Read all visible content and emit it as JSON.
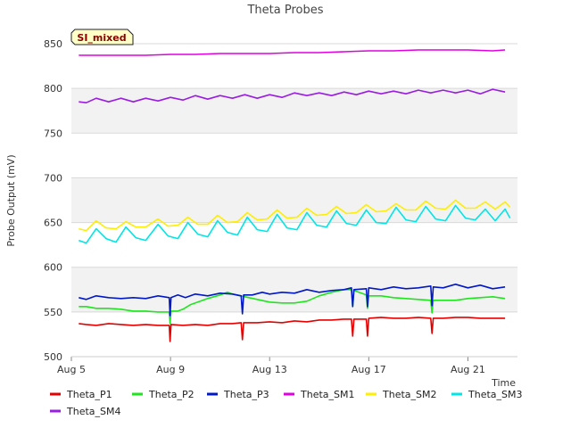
{
  "chart_data": {
    "type": "line",
    "title": "Theta Probes",
    "xlabel": "Time",
    "ylabel": "Probe Output (mV)",
    "badge": "SI_mixed",
    "x_axis": {
      "type": "date",
      "start": "2023-08-05",
      "end": "2023-08-23",
      "ticks": [
        "Aug 5",
        "Aug 9",
        "Aug 13",
        "Aug 17",
        "Aug 21"
      ]
    },
    "ylim": [
      500,
      850
    ],
    "yticks": [
      500,
      550,
      600,
      650,
      700,
      750,
      800,
      850
    ],
    "grid_bands": true,
    "legend_position": "bottom",
    "series": [
      {
        "name": "Theta_P1",
        "color": "#e60000",
        "points": [
          [
            5.3,
            537
          ],
          [
            5.6,
            536
          ],
          [
            6,
            535
          ],
          [
            6.5,
            537
          ],
          [
            7,
            536
          ],
          [
            7.5,
            535
          ],
          [
            8,
            536
          ],
          [
            8.5,
            535
          ],
          [
            8.95,
            535
          ],
          [
            8.98,
            517
          ],
          [
            9.02,
            536
          ],
          [
            9.5,
            535
          ],
          [
            10,
            536
          ],
          [
            10.5,
            535
          ],
          [
            11,
            537
          ],
          [
            11.5,
            537
          ],
          [
            11.85,
            538
          ],
          [
            11.9,
            519
          ],
          [
            11.95,
            538
          ],
          [
            12.5,
            538
          ],
          [
            13,
            539
          ],
          [
            13.5,
            538
          ],
          [
            14,
            540
          ],
          [
            14.5,
            539
          ],
          [
            15,
            541
          ],
          [
            15.5,
            541
          ],
          [
            16,
            542
          ],
          [
            16.3,
            542
          ],
          [
            16.35,
            523
          ],
          [
            16.4,
            542
          ],
          [
            16.9,
            542
          ],
          [
            16.95,
            523
          ],
          [
            17,
            543
          ],
          [
            17.5,
            544
          ],
          [
            18,
            543
          ],
          [
            18.5,
            543
          ],
          [
            19,
            544
          ],
          [
            19.5,
            543
          ],
          [
            19.55,
            526
          ],
          [
            19.6,
            543
          ],
          [
            20,
            543
          ],
          [
            20.5,
            544
          ],
          [
            21,
            544
          ],
          [
            21.5,
            543
          ],
          [
            22,
            543
          ],
          [
            22.5,
            543
          ]
        ]
      },
      {
        "name": "Theta_P2",
        "color": "#1ee61e",
        "points": [
          [
            5.3,
            556
          ],
          [
            5.6,
            556
          ],
          [
            6,
            554
          ],
          [
            6.5,
            554
          ],
          [
            7,
            553
          ],
          [
            7.5,
            551
          ],
          [
            8,
            551
          ],
          [
            8.5,
            550
          ],
          [
            8.95,
            550
          ],
          [
            8.98,
            537
          ],
          [
            9.02,
            551
          ],
          [
            9.3,
            551
          ],
          [
            9.5,
            553
          ],
          [
            9.8,
            558
          ],
          [
            10,
            560
          ],
          [
            10.5,
            565
          ],
          [
            11,
            569
          ],
          [
            11.3,
            572
          ],
          [
            11.5,
            570
          ],
          [
            12,
            567
          ],
          [
            12.5,
            564
          ],
          [
            13,
            561
          ],
          [
            13.5,
            560
          ],
          [
            14,
            560
          ],
          [
            14.5,
            562
          ],
          [
            15,
            568
          ],
          [
            15.5,
            572
          ],
          [
            16,
            575
          ],
          [
            16.3,
            575
          ],
          [
            16.35,
            556
          ],
          [
            16.4,
            574
          ],
          [
            16.9,
            569
          ],
          [
            16.95,
            554
          ],
          [
            17,
            568
          ],
          [
            17.5,
            568
          ],
          [
            18,
            566
          ],
          [
            18.5,
            565
          ],
          [
            19,
            564
          ],
          [
            19.5,
            563
          ],
          [
            19.55,
            549
          ],
          [
            19.6,
            563
          ],
          [
            20,
            563
          ],
          [
            20.5,
            563
          ],
          [
            21,
            565
          ],
          [
            21.5,
            566
          ],
          [
            22,
            567
          ],
          [
            22.5,
            565
          ]
        ]
      },
      {
        "name": "Theta_P3",
        "color": "#0018c8",
        "points": [
          [
            5.3,
            566
          ],
          [
            5.6,
            564
          ],
          [
            6,
            568
          ],
          [
            6.5,
            566
          ],
          [
            7,
            565
          ],
          [
            7.5,
            566
          ],
          [
            8,
            565
          ],
          [
            8.5,
            568
          ],
          [
            8.95,
            566
          ],
          [
            8.98,
            546
          ],
          [
            9.02,
            566
          ],
          [
            9.3,
            569
          ],
          [
            9.6,
            566
          ],
          [
            10,
            570
          ],
          [
            10.5,
            568
          ],
          [
            11,
            571
          ],
          [
            11.5,
            570
          ],
          [
            11.85,
            568
          ],
          [
            11.9,
            548
          ],
          [
            11.95,
            569
          ],
          [
            12.3,
            569
          ],
          [
            12.7,
            572
          ],
          [
            13,
            570
          ],
          [
            13.5,
            572
          ],
          [
            14,
            571
          ],
          [
            14.5,
            575
          ],
          [
            15,
            572
          ],
          [
            15.5,
            574
          ],
          [
            16,
            575
          ],
          [
            16.3,
            577
          ],
          [
            16.35,
            556
          ],
          [
            16.4,
            575
          ],
          [
            16.9,
            576
          ],
          [
            16.95,
            556
          ],
          [
            17,
            577
          ],
          [
            17.5,
            575
          ],
          [
            18,
            578
          ],
          [
            18.5,
            576
          ],
          [
            19,
            577
          ],
          [
            19.5,
            579
          ],
          [
            19.55,
            557
          ],
          [
            19.6,
            578
          ],
          [
            20,
            577
          ],
          [
            20.5,
            581
          ],
          [
            21,
            577
          ],
          [
            21.5,
            580
          ],
          [
            22,
            576
          ],
          [
            22.5,
            578
          ]
        ]
      },
      {
        "name": "Theta_SM1",
        "color": "#e000e0",
        "points": [
          [
            5.3,
            837
          ],
          [
            6,
            837
          ],
          [
            7,
            837
          ],
          [
            8,
            837
          ],
          [
            9,
            838
          ],
          [
            10,
            838
          ],
          [
            11,
            839
          ],
          [
            12,
            839
          ],
          [
            13,
            839
          ],
          [
            14,
            840
          ],
          [
            15,
            840
          ],
          [
            16,
            841
          ],
          [
            17,
            842
          ],
          [
            18,
            842
          ],
          [
            19,
            843
          ],
          [
            20,
            843
          ],
          [
            21,
            843
          ],
          [
            22,
            842
          ],
          [
            22.5,
            843
          ]
        ]
      },
      {
        "name": "Theta_SM2",
        "color": "#ffee00",
        "points": [
          [
            5.3,
            643
          ],
          [
            5.6,
            641
          ],
          [
            6,
            652
          ],
          [
            6.4,
            644
          ],
          [
            6.8,
            643
          ],
          [
            7.2,
            651
          ],
          [
            7.6,
            645
          ],
          [
            8,
            645
          ],
          [
            8.5,
            654
          ],
          [
            8.9,
            646
          ],
          [
            9.3,
            647
          ],
          [
            9.7,
            656
          ],
          [
            10.1,
            648
          ],
          [
            10.5,
            648
          ],
          [
            10.9,
            658
          ],
          [
            11.3,
            650
          ],
          [
            11.7,
            651
          ],
          [
            12.1,
            661
          ],
          [
            12.5,
            653
          ],
          [
            12.9,
            654
          ],
          [
            13.3,
            664
          ],
          [
            13.7,
            655
          ],
          [
            14.1,
            656
          ],
          [
            14.5,
            666
          ],
          [
            14.9,
            658
          ],
          [
            15.3,
            659
          ],
          [
            15.7,
            668
          ],
          [
            16.1,
            660
          ],
          [
            16.5,
            661
          ],
          [
            16.9,
            670
          ],
          [
            17.3,
            662
          ],
          [
            17.7,
            663
          ],
          [
            18.1,
            671
          ],
          [
            18.5,
            664
          ],
          [
            18.9,
            664
          ],
          [
            19.3,
            674
          ],
          [
            19.7,
            666
          ],
          [
            20.1,
            665
          ],
          [
            20.5,
            675
          ],
          [
            20.9,
            666
          ],
          [
            21.3,
            666
          ],
          [
            21.7,
            673
          ],
          [
            22.1,
            665
          ],
          [
            22.5,
            673
          ],
          [
            22.7,
            667
          ]
        ]
      },
      {
        "name": "Theta_SM3",
        "color": "#00e6e6",
        "points": [
          [
            5.3,
            630
          ],
          [
            5.6,
            627
          ],
          [
            6,
            643
          ],
          [
            6.4,
            632
          ],
          [
            6.8,
            628
          ],
          [
            7.2,
            645
          ],
          [
            7.6,
            633
          ],
          [
            8,
            630
          ],
          [
            8.5,
            648
          ],
          [
            8.9,
            635
          ],
          [
            9.3,
            632
          ],
          [
            9.7,
            650
          ],
          [
            10.1,
            637
          ],
          [
            10.5,
            634
          ],
          [
            10.9,
            652
          ],
          [
            11.3,
            639
          ],
          [
            11.7,
            636
          ],
          [
            12.1,
            656
          ],
          [
            12.5,
            642
          ],
          [
            12.9,
            640
          ],
          [
            13.3,
            659
          ],
          [
            13.7,
            644
          ],
          [
            14.1,
            642
          ],
          [
            14.5,
            661
          ],
          [
            14.9,
            647
          ],
          [
            15.3,
            645
          ],
          [
            15.7,
            663
          ],
          [
            16.1,
            649
          ],
          [
            16.5,
            647
          ],
          [
            16.9,
            664
          ],
          [
            17.3,
            650
          ],
          [
            17.7,
            649
          ],
          [
            18.1,
            667
          ],
          [
            18.5,
            653
          ],
          [
            18.9,
            651
          ],
          [
            19.3,
            668
          ],
          [
            19.7,
            654
          ],
          [
            20.1,
            652
          ],
          [
            20.5,
            669
          ],
          [
            20.9,
            655
          ],
          [
            21.3,
            653
          ],
          [
            21.7,
            665
          ],
          [
            22.1,
            652
          ],
          [
            22.5,
            665
          ],
          [
            22.7,
            655
          ]
        ]
      },
      {
        "name": "Theta_SM4",
        "color": "#9a1ee0",
        "points": [
          [
            5.3,
            785
          ],
          [
            5.6,
            784
          ],
          [
            6,
            789
          ],
          [
            6.5,
            785
          ],
          [
            7,
            789
          ],
          [
            7.5,
            785
          ],
          [
            8,
            789
          ],
          [
            8.5,
            786
          ],
          [
            9,
            790
          ],
          [
            9.5,
            787
          ],
          [
            10,
            792
          ],
          [
            10.5,
            788
          ],
          [
            11,
            792
          ],
          [
            11.5,
            789
          ],
          [
            12,
            793
          ],
          [
            12.5,
            789
          ],
          [
            13,
            793
          ],
          [
            13.5,
            790
          ],
          [
            14,
            795
          ],
          [
            14.5,
            792
          ],
          [
            15,
            795
          ],
          [
            15.5,
            792
          ],
          [
            16,
            796
          ],
          [
            16.5,
            793
          ],
          [
            17,
            797
          ],
          [
            17.5,
            794
          ],
          [
            18,
            797
          ],
          [
            18.5,
            794
          ],
          [
            19,
            798
          ],
          [
            19.5,
            795
          ],
          [
            20,
            798
          ],
          [
            20.5,
            795
          ],
          [
            21,
            798
          ],
          [
            21.5,
            794
          ],
          [
            22,
            799
          ],
          [
            22.5,
            796
          ]
        ]
      }
    ]
  }
}
